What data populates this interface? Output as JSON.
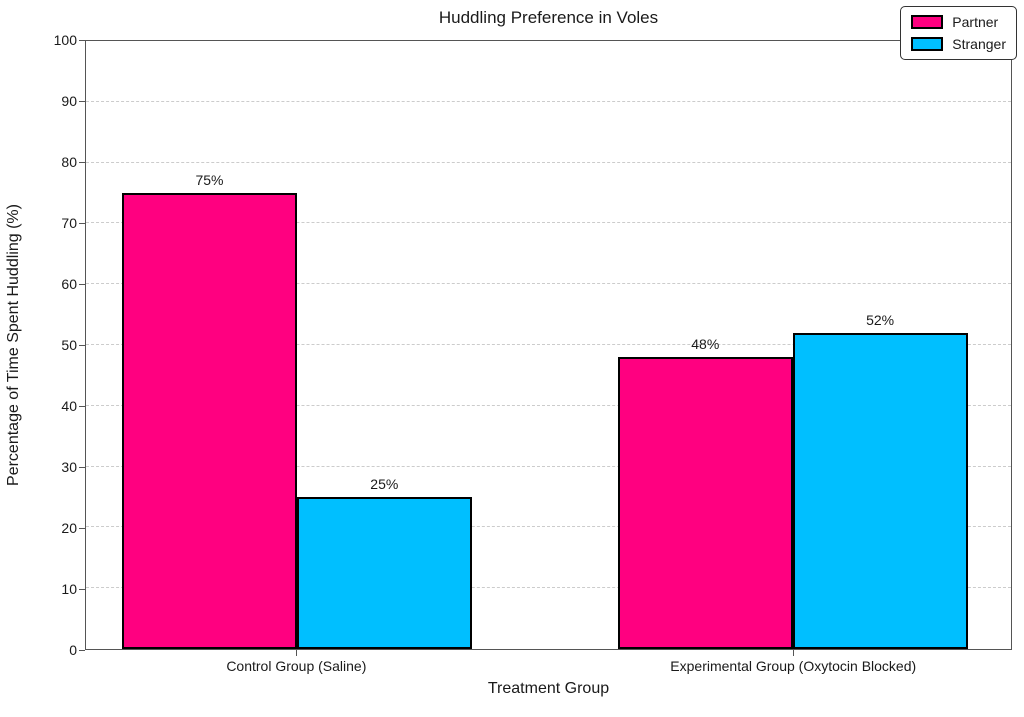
{
  "chart_data": {
    "type": "bar",
    "title": "Huddling Preference in Voles",
    "xlabel": "Treatment Group",
    "ylabel": "Percentage of Time Spent Huddling (%)",
    "categories": [
      "Control Group (Saline)",
      "Experimental Group (Oxytocin Blocked)"
    ],
    "series": [
      {
        "name": "Partner",
        "values": [
          75,
          48
        ],
        "labels": [
          "75%",
          "48%"
        ],
        "color": "#FF0080"
      },
      {
        "name": "Stranger",
        "values": [
          25,
          52
        ],
        "labels": [
          "25%",
          "52%"
        ],
        "color": "#00BFFF"
      }
    ],
    "ylim": [
      0,
      100
    ],
    "yticks": [
      0,
      10,
      20,
      30,
      40,
      50,
      60,
      70,
      80,
      90,
      100
    ],
    "grid": "horizontal-dashed",
    "legend_position": "upper-right",
    "bar_edge_color": "#000000",
    "grid_color": "#cccccc"
  }
}
